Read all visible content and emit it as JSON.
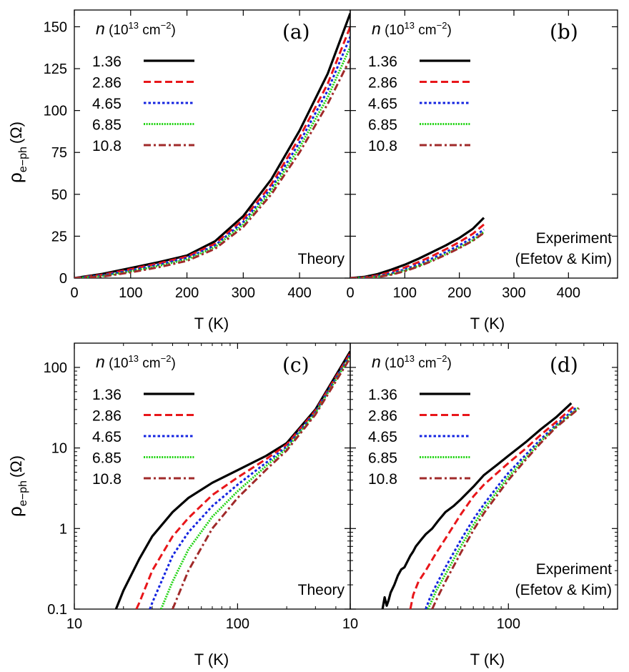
{
  "figure": {
    "y_title_main": "ρ",
    "y_title_sub": "e−ph",
    "y_title_unit": "(Ω)",
    "x_title": "T (K)",
    "legend_title_var": "n",
    "legend_title_unit": "(10",
    "legend_title_exp": "13",
    "legend_title_rest": "cm",
    "legend_title_exp2": "−2",
    "legend_title_close": ")"
  },
  "chart_data": [
    {
      "panel": "(a)",
      "type": "line",
      "note": [
        "Theory"
      ],
      "xscale": "linear",
      "yscale": "linear",
      "xlim": [
        0,
        490
      ],
      "ylim": [
        0,
        160
      ],
      "xticks": [
        "0",
        "100",
        "200",
        "300",
        "400"
      ],
      "xtick_values": [
        0,
        100,
        200,
        300,
        400
      ],
      "yticks": [
        "0",
        "25",
        "50",
        "75",
        "100",
        "125",
        "150"
      ],
      "ytick_values": [
        0,
        25,
        50,
        75,
        100,
        125,
        150
      ],
      "xlabel": "T (K)",
      "ylabel": "ρe−ph (Ω)",
      "series": [
        {
          "name": "1.36",
          "color": "#000000",
          "dash": "solid",
          "x": [
            0,
            50,
            100,
            150,
            200,
            250,
            300,
            350,
            400,
            450,
            490
          ],
          "y": [
            0,
            2.5,
            6,
            9.5,
            13.5,
            22,
            37,
            59,
            88,
            122,
            158
          ]
        },
        {
          "name": "2.86",
          "color": "#e8161a",
          "dash": "dashed",
          "x": [
            0,
            50,
            100,
            150,
            200,
            250,
            300,
            350,
            400,
            450,
            490
          ],
          "y": [
            0,
            2,
            5.3,
            8.8,
            12.8,
            20.5,
            35,
            56,
            84,
            116,
            150
          ]
        },
        {
          "name": "4.65",
          "color": "#1424e0",
          "dash": "dotted",
          "x": [
            0,
            50,
            100,
            150,
            200,
            250,
            300,
            350,
            400,
            450,
            490
          ],
          "y": [
            0,
            1.6,
            4.6,
            8,
            12,
            19.5,
            33.5,
            54,
            81,
            112,
            144
          ]
        },
        {
          "name": "6.85",
          "color": "#22d414",
          "dash": "dotted-fine",
          "x": [
            0,
            50,
            100,
            150,
            200,
            250,
            300,
            350,
            400,
            450,
            490
          ],
          "y": [
            0,
            1.2,
            4,
            7.3,
            11.2,
            18.5,
            32,
            52,
            78,
            108,
            138
          ]
        },
        {
          "name": "10.8",
          "color": "#a02a2a",
          "dash": "dashdot",
          "x": [
            0,
            50,
            100,
            150,
            200,
            250,
            300,
            350,
            400,
            450,
            490
          ],
          "y": [
            0,
            0.9,
            3.4,
            6.5,
            10.3,
            17.5,
            30.5,
            50,
            75,
            104,
            131
          ]
        }
      ]
    },
    {
      "panel": "(b)",
      "type": "line",
      "note": [
        "Experiment",
        "(Efetov & Kim)"
      ],
      "xscale": "linear",
      "yscale": "linear",
      "xlim": [
        0,
        490
      ],
      "ylim": [
        0,
        160
      ],
      "xticks": [
        "0",
        "100",
        "200",
        "300",
        "400"
      ],
      "xtick_values": [
        0,
        100,
        200,
        300,
        400
      ],
      "yticks": [],
      "ytick_values": [
        0,
        25,
        50,
        75,
        100,
        125,
        150
      ],
      "xlabel": "T (K)",
      "ylabel": "",
      "series": [
        {
          "name": "1.36",
          "color": "#000000",
          "dash": "solid",
          "x": [
            0,
            25,
            50,
            75,
            100,
            125,
            150,
            175,
            200,
            225,
            245
          ],
          "y": [
            0,
            0.7,
            2.4,
            5,
            8,
            11.5,
            15.5,
            19.5,
            24,
            29.5,
            36
          ]
        },
        {
          "name": "2.86",
          "color": "#e8161a",
          "dash": "dashed",
          "x": [
            0,
            25,
            50,
            75,
            100,
            125,
            150,
            175,
            200,
            225,
            245
          ],
          "y": [
            0,
            0.4,
            1.6,
            3.7,
            6.3,
            9.5,
            13.2,
            17.2,
            21.5,
            26.5,
            32
          ]
        },
        {
          "name": "4.65",
          "color": "#1424e0",
          "dash": "dotted",
          "x": [
            0,
            25,
            50,
            75,
            100,
            125,
            150,
            175,
            200,
            225,
            245
          ],
          "y": [
            0,
            0.25,
            1.1,
            2.8,
            5.2,
            8.2,
            11.7,
            15.5,
            19.6,
            24.2,
            29
          ]
        },
        {
          "name": "6.85",
          "color": "#22d414",
          "dash": "dotted-fine",
          "x": [
            0,
            25,
            50,
            75,
            100,
            125,
            150,
            175,
            200,
            225,
            245
          ],
          "y": [
            0,
            0.15,
            0.8,
            2.3,
            4.5,
            7.3,
            10.6,
            14.3,
            18.3,
            22.7,
            27.5
          ]
        },
        {
          "name": "10.8",
          "color": "#a02a2a",
          "dash": "dashdot",
          "x": [
            0,
            25,
            50,
            75,
            100,
            125,
            150,
            175,
            200,
            225,
            245
          ],
          "y": [
            0,
            0.1,
            0.6,
            2,
            4.1,
            6.9,
            10.2,
            13.9,
            17.9,
            22.3,
            27
          ]
        }
      ]
    },
    {
      "panel": "(c)",
      "type": "line",
      "note": [
        "Theory"
      ],
      "xscale": "log",
      "yscale": "log",
      "xlim": [
        10,
        490
      ],
      "ylim": [
        0.1,
        200
      ],
      "xticks": [
        "10",
        "100"
      ],
      "xtick_values": [
        10,
        100
      ],
      "yticks": [
        "0.1",
        "1",
        "10",
        "100"
      ],
      "ytick_values": [
        0.1,
        1,
        10,
        100
      ],
      "xlabel": "T (K)",
      "ylabel": "ρe−ph (Ω)",
      "series": [
        {
          "name": "1.36",
          "color": "#000000",
          "dash": "solid",
          "x": [
            18,
            20,
            25,
            30,
            40,
            50,
            70,
            100,
            150,
            200,
            300,
            490
          ],
          "y": [
            0.1,
            0.17,
            0.42,
            0.8,
            1.6,
            2.4,
            3.7,
            5.3,
            8,
            11.5,
            30,
            158
          ]
        },
        {
          "name": "2.86",
          "color": "#e8161a",
          "dash": "dashed",
          "x": [
            24,
            25,
            30,
            40,
            50,
            70,
            100,
            150,
            200,
            300,
            490
          ],
          "y": [
            0.1,
            0.12,
            0.3,
            0.8,
            1.35,
            2.6,
            4.3,
            7.3,
            11,
            29,
            150
          ]
        },
        {
          "name": "4.65",
          "color": "#1424e0",
          "dash": "dotted",
          "x": [
            29,
            30,
            40,
            50,
            70,
            100,
            150,
            200,
            300,
            490
          ],
          "y": [
            0.1,
            0.12,
            0.46,
            0.9,
            1.9,
            3.5,
            6.6,
            10.4,
            28,
            144
          ]
        },
        {
          "name": "6.85",
          "color": "#22d414",
          "dash": "dotted-fine",
          "x": [
            34,
            40,
            50,
            70,
            100,
            150,
            200,
            300,
            490
          ],
          "y": [
            0.1,
            0.22,
            0.55,
            1.4,
            2.9,
            6,
            9.9,
            27,
            138
          ]
        },
        {
          "name": "10.8",
          "color": "#a02a2a",
          "dash": "dashdot",
          "x": [
            40,
            50,
            70,
            100,
            150,
            200,
            300,
            490
          ],
          "y": [
            0.1,
            0.3,
            1,
            2.4,
            5.4,
            9.3,
            26,
            131
          ]
        }
      ]
    },
    {
      "panel": "(d)",
      "type": "line",
      "note": [
        "Experiment",
        "(Efetov & Kim)"
      ],
      "xscale": "log",
      "yscale": "log",
      "xlim": [
        10,
        490
      ],
      "ylim": [
        0.1,
        200
      ],
      "xticks": [
        "10",
        "100"
      ],
      "xtick_values": [
        10,
        100
      ],
      "yticks": [],
      "ytick_values": [
        0.1,
        1,
        10,
        100
      ],
      "xlabel": "T (K)",
      "ylabel": "",
      "series": [
        {
          "name": "1.36",
          "color": "#000000",
          "dash": "solid",
          "x": [
            16,
            16.5,
            17,
            17.5,
            18,
            19,
            20,
            21,
            22,
            23,
            24,
            25,
            26,
            28,
            30,
            33,
            36,
            40,
            45,
            50,
            60,
            70,
            85,
            100,
            130,
            160,
            200,
            250
          ],
          "y": [
            0.1,
            0.14,
            0.11,
            0.13,
            0.16,
            0.2,
            0.26,
            0.31,
            0.33,
            0.39,
            0.46,
            0.52,
            0.6,
            0.72,
            0.85,
            1.0,
            1.25,
            1.6,
            1.9,
            2.3,
            3.3,
            4.6,
            6.2,
            8,
            12,
            17,
            24,
            36
          ]
        },
        {
          "name": "2.86",
          "color": "#e8161a",
          "dash": "dashed",
          "x": [
            24,
            25,
            27,
            30,
            35,
            40,
            50,
            60,
            70,
            85,
            100,
            130,
            160,
            200,
            260
          ],
          "y": [
            0.1,
            0.15,
            0.22,
            0.3,
            0.5,
            0.75,
            1.5,
            2.5,
            3.5,
            4.9,
            6.5,
            10,
            14.5,
            21,
            33
          ]
        },
        {
          "name": "4.65",
          "color": "#1424e0",
          "dash": "dotted",
          "x": [
            30,
            32,
            35,
            40,
            50,
            60,
            70,
            85,
            100,
            130,
            160,
            200,
            270
          ],
          "y": [
            0.1,
            0.14,
            0.2,
            0.33,
            0.72,
            1.3,
            2,
            3.3,
            4.9,
            8.4,
            12.8,
            19.3,
            32
          ]
        },
        {
          "name": "6.85",
          "color": "#22d414",
          "dash": "dotted-fine",
          "x": [
            31,
            33,
            35,
            40,
            50,
            60,
            70,
            85,
            100,
            130,
            160,
            200,
            280
          ],
          "y": [
            0.1,
            0.13,
            0.17,
            0.27,
            0.6,
            1.1,
            1.75,
            2.9,
            4.4,
            7.7,
            12,
            18.5,
            32
          ]
        },
        {
          "name": "10.8",
          "color": "#a02a2a",
          "dash": "dashdot",
          "x": [
            33,
            35,
            40,
            50,
            60,
            70,
            85,
            100,
            130,
            160,
            200,
            280
          ],
          "y": [
            0.1,
            0.13,
            0.22,
            0.5,
            0.95,
            1.55,
            2.6,
            4,
            7.3,
            11.5,
            18,
            31
          ]
        }
      ]
    }
  ]
}
